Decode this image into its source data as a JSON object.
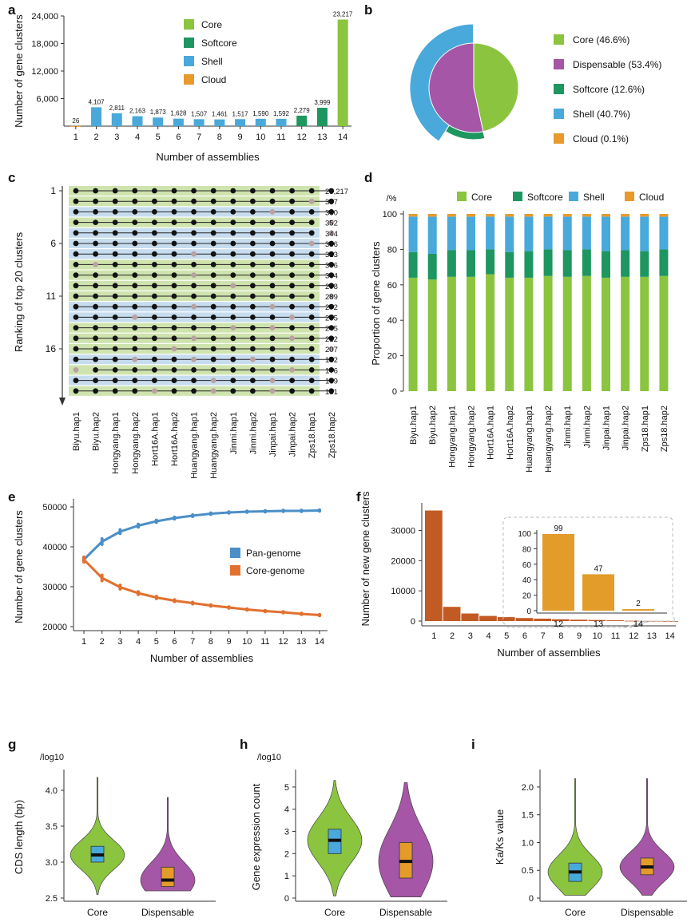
{
  "colors": {
    "core": "#8BC43F",
    "softcore": "#1E9660",
    "shell": "#48A9DA",
    "cloud": "#E89A2B",
    "dispensable": "#A556A6",
    "pan": "#4B8FC8",
    "corecurve": "#E2702E",
    "newbar": "#C25A23",
    "inset": "#E39B2A",
    "rowGreen": "#CFE3AE",
    "rowBlue": "#C7DCEE",
    "dot": "#111111",
    "dotGrey": "#B9A2A2"
  },
  "chart_data": [
    {
      "panel": "a",
      "type": "bar",
      "categories": [
        "1",
        "2",
        "3",
        "4",
        "5",
        "6",
        "7",
        "8",
        "9",
        "10",
        "11",
        "12",
        "13",
        "14"
      ],
      "values": [
        26,
        4107,
        2811,
        2163,
        1873,
        1628,
        1507,
        1461,
        1517,
        1590,
        1592,
        2279,
        3999,
        23217
      ],
      "value_labels": [
        "26",
        "4,107",
        "2,811",
        "2,163",
        "1,873",
        "1,628",
        "1,507",
        "1,461",
        "1,517",
        "1,590",
        "1,592",
        "2,279",
        "3,999",
        "23,217"
      ],
      "bar_class": [
        "cloud",
        "shell",
        "shell",
        "shell",
        "shell",
        "shell",
        "shell",
        "shell",
        "shell",
        "shell",
        "shell",
        "softcore",
        "softcore",
        "core"
      ],
      "ylim": [
        0,
        24000
      ],
      "yticks": [
        6000,
        12000,
        18000,
        24000
      ],
      "ytick_labels": [
        "6,000",
        "12,000",
        "18,000",
        "24,000"
      ],
      "xlabel": "Number of assemblies",
      "ylabel": "Number of gene clusters",
      "legend": [
        "Core",
        "Softcore",
        "Shell",
        "Cloud"
      ]
    },
    {
      "panel": "b",
      "type": "pie",
      "outer": [
        {
          "label": "Core (46.6%)",
          "value": 46.6,
          "key": "core"
        },
        {
          "label": "Softcore (12.6%)",
          "value": 12.6,
          "key": "softcore"
        },
        {
          "label": "Shell (40.7%)",
          "value": 40.7,
          "key": "shell"
        },
        {
          "label": "Cloud (0.1%)",
          "value": 0.1,
          "key": "cloud"
        }
      ],
      "inner": [
        {
          "label": "Core (46.6%)",
          "value": 46.6,
          "key": "core"
        },
        {
          "label": "Dispensable (53.4%)",
          "value": 53.4,
          "key": "dispensable"
        }
      ],
      "legend": [
        "Core (46.6%)",
        "Dispensable (53.4%)",
        "Softcore (12.6%)",
        "Shell (40.7%)",
        "Cloud (0.1%)"
      ]
    },
    {
      "panel": "c",
      "type": "table",
      "assemblies": [
        "Biyu.hap1",
        "Biyu.hap2",
        "Hongyang.hap1",
        "Hongyang.hap2",
        "Hort16A.hap1",
        "Hort16A.hap2",
        "Huangyang.hap1",
        "Huangyang.hap2",
        "Jinmi.hap1",
        "Jinmi.hap2",
        "Jinpai.hap1",
        "Jinpai.hap2",
        "Zps18.hap1",
        "Zps18.hap2"
      ],
      "counts": [
        23217,
        387,
        360,
        352,
        344,
        336,
        313,
        306,
        304,
        298,
        289,
        272,
        255,
        245,
        212,
        207,
        182,
        176,
        169,
        131
      ],
      "count_labels": [
        "23,217",
        "387",
        "360",
        "352",
        "344",
        "336",
        "313",
        "306",
        "304",
        "298",
        "289",
        "272",
        "255",
        "245",
        "212",
        "207",
        "182",
        "176",
        "169",
        "131"
      ],
      "row_class": [
        "core",
        "softcore",
        "shell",
        "softcore",
        "shell",
        "shell",
        "shell",
        "softcore",
        "softcore",
        "softcore",
        "softcore",
        "shell",
        "shell",
        "softcore",
        "softcore",
        "softcore",
        "shell",
        "softcore",
        "shell",
        "softcore"
      ],
      "missing": [
        [],
        [
          12
        ],
        [
          10
        ],
        [
          13
        ],
        [
          13
        ],
        [
          12
        ],
        [
          6
        ],
        [
          1
        ],
        [
          6
        ],
        [
          8
        ],
        [
          13
        ],
        [
          6,
          10
        ],
        [
          3,
          11
        ],
        [
          8,
          10
        ],
        [
          6,
          11
        ],
        [
          5,
          13
        ],
        [
          3,
          6,
          9
        ],
        [
          0,
          11
        ],
        [
          7,
          10
        ],
        [
          4,
          7,
          10
        ]
      ],
      "yticks": [
        "1",
        "6",
        "11",
        "16"
      ],
      "ylabel": "Ranking of top 20 clusters"
    },
    {
      "panel": "d",
      "type": "bar",
      "stacked": true,
      "categories": [
        "Biyu.hap1",
        "Biyu.hap2",
        "Hongyang.hap1",
        "Hongyang.hap2",
        "Hort16A.hap1",
        "Hort16A.hap2",
        "Huangyang.hap1",
        "Huangyang.hap2",
        "Jinmi.hap1",
        "Jinmi.hap2",
        "Jinpai.hap1",
        "Jinpai.hap2",
        "Zps18.hap1",
        "Zps18.hap2"
      ],
      "series": [
        {
          "name": "Core",
          "key": "core",
          "values": [
            64,
            63,
            64.5,
            64.5,
            66,
            64,
            64,
            65,
            64.5,
            65,
            64,
            64.5,
            64.5,
            65
          ]
        },
        {
          "name": "Softcore",
          "key": "softcore",
          "values": [
            14.5,
            14.5,
            15,
            15,
            14,
            14.5,
            15,
            15,
            15,
            15,
            15,
            15,
            14.5,
            15
          ]
        },
        {
          "name": "Shell",
          "key": "shell",
          "values": [
            20,
            21,
            19,
            19,
            18.5,
            20,
            19.5,
            18.5,
            19,
            18.5,
            19.5,
            19,
            19.5,
            18.5
          ]
        },
        {
          "name": "Cloud",
          "key": "cloud",
          "values": [
            1.5,
            1.5,
            1.5,
            1.5,
            1.5,
            1.5,
            1.5,
            1.5,
            1.5,
            1.5,
            1.5,
            1.5,
            1.5,
            1.5
          ]
        }
      ],
      "ylim": [
        0,
        100
      ],
      "yticks": [
        "0",
        "20",
        "40",
        "60",
        "80",
        "100"
      ],
      "unit": "/%",
      "ylabel": "Proportion of gene clusters",
      "legend": [
        "Core",
        "Softcore",
        "Shell",
        "Cloud"
      ]
    },
    {
      "panel": "e",
      "type": "line",
      "x": [
        1,
        2,
        3,
        4,
        5,
        6,
        7,
        8,
        9,
        10,
        11,
        12,
        13,
        14
      ],
      "series": [
        {
          "name": "Pan-genome",
          "key": "pan",
          "values": [
            36800,
            41300,
            43800,
            45300,
            46400,
            47200,
            47800,
            48300,
            48600,
            48800,
            48900,
            49000,
            49000,
            49100
          ]
        },
        {
          "name": "Core-genome",
          "key": "corecurve",
          "values": [
            36800,
            32200,
            29900,
            28400,
            27300,
            26500,
            25900,
            25300,
            24800,
            24300,
            23900,
            23600,
            23200,
            22900
          ]
        }
      ],
      "ylim": [
        20000,
        50000
      ],
      "yticks": [
        "20000",
        "30000",
        "40000",
        "50000"
      ],
      "xlabel": "Number of assemblies",
      "ylabel": "Number of gene clusters",
      "legend": [
        "Pan-genome",
        "Core-genome"
      ]
    },
    {
      "panel": "f",
      "type": "bar",
      "categories": [
        "1",
        "2",
        "3",
        "4",
        "5",
        "6",
        "7",
        "8",
        "9",
        "10",
        "11",
        "12",
        "13",
        "14"
      ],
      "values": [
        36600,
        4700,
        2500,
        1700,
        1300,
        1000,
        800,
        600,
        450,
        350,
        250,
        99,
        47,
        2
      ],
      "ylim": [
        0,
        37000
      ],
      "yticks": [
        "0",
        "10000",
        "20000",
        "30000"
      ],
      "xlabel": "Number of assemblies",
      "ylabel": "Number of new gene clusters",
      "inset": {
        "categories": [
          "12",
          "13",
          "14"
        ],
        "values": [
          99,
          47,
          2
        ],
        "value_labels": [
          "99",
          "47",
          "2"
        ],
        "ylim": [
          0,
          100
        ],
        "yticks": [
          "0",
          "20",
          "40",
          "60",
          "80",
          "100"
        ]
      }
    },
    {
      "panel": "g",
      "type": "violin",
      "groups": [
        "Core",
        "Dispensable"
      ],
      "unit": "/log10",
      "ylabel": "CDS length (bp)",
      "ylim": [
        2.5,
        4.2
      ],
      "yticks": [
        "2.5",
        "3.0",
        "3.5",
        "4.0"
      ],
      "stats": [
        {
          "min": 2.55,
          "q1": 3.0,
          "median": 3.1,
          "q3": 3.22,
          "max": 4.18
        },
        {
          "min": 2.6,
          "q1": 2.66,
          "median": 2.75,
          "q3": 2.93,
          "max": 3.9
        }
      ]
    },
    {
      "panel": "h",
      "type": "violin",
      "groups": [
        "Core",
        "Dispensable"
      ],
      "unit": "/log10",
      "ylabel": "Gene expression count",
      "ylim": [
        0,
        5.5
      ],
      "yticks": [
        "0",
        "1",
        "2",
        "3",
        "4",
        "5"
      ],
      "stats": [
        {
          "min": 0.1,
          "q1": 2.0,
          "median": 2.6,
          "q3": 3.1,
          "max": 5.3
        },
        {
          "min": 0.05,
          "q1": 0.9,
          "median": 1.65,
          "q3": 2.5,
          "max": 5.2
        }
      ]
    },
    {
      "panel": "i",
      "type": "violin",
      "groups": [
        "Core",
        "Dispensable"
      ],
      "ylabel": "Ka/Ks value",
      "ylim": [
        0,
        2.2
      ],
      "yticks": [
        "0",
        "0.5",
        "1.0",
        "1.5",
        "2.0"
      ],
      "stats": [
        {
          "min": 0.05,
          "q1": 0.3,
          "median": 0.47,
          "q3": 0.63,
          "max": 2.15
        },
        {
          "min": 0.05,
          "q1": 0.42,
          "median": 0.56,
          "q3": 0.72,
          "max": 2.15
        }
      ]
    }
  ],
  "labels": {
    "a": "a",
    "b": "b",
    "c": "c",
    "d": "d",
    "e": "e",
    "f": "f",
    "g": "g",
    "h": "h",
    "i": "i"
  }
}
